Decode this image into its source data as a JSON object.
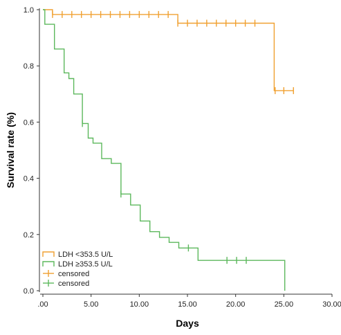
{
  "chart_data": {
    "type": "line",
    "subtype": "kaplan-meier",
    "xlabel": "Days",
    "ylabel": "Survival rate (%)",
    "xlim": [
      0,
      30
    ],
    "ylim": [
      0,
      1
    ],
    "x_ticks": [
      0,
      5,
      10,
      15,
      20,
      25,
      30
    ],
    "x_tick_labels": [
      ".00",
      "5.00",
      "10.00",
      "15.00",
      "20.00",
      "25.00",
      "30.00"
    ],
    "y_ticks": [
      0,
      0.2,
      0.4,
      0.6,
      0.8,
      1.0
    ],
    "y_tick_labels": [
      "0.0",
      "0.2",
      "0.4",
      "0.6",
      "0.8",
      "1.0"
    ],
    "grid": false,
    "legend_position": "bottom-left",
    "series": [
      {
        "name": "LDH <353.5 U/L",
        "color": "#F0A030",
        "steps": [
          [
            0,
            1.0
          ],
          [
            1,
            0.983
          ],
          [
            14,
            0.952
          ],
          [
            24,
            0.712
          ],
          [
            26,
            0.712
          ]
        ],
        "censored_x": [
          1,
          2,
          3,
          4,
          5,
          6,
          7,
          8,
          9,
          10,
          11,
          12,
          13,
          14,
          15,
          16,
          17,
          18,
          19,
          20,
          21,
          22,
          24.1,
          25,
          26
        ]
      },
      {
        "name": "LDH ≥353.5 U/L",
        "color": "#5CB85C",
        "steps": [
          [
            0,
            1.0
          ],
          [
            0.2,
            0.948
          ],
          [
            1.2,
            0.86
          ],
          [
            2.2,
            0.775
          ],
          [
            2.7,
            0.755
          ],
          [
            3.2,
            0.7
          ],
          [
            4.1,
            0.595
          ],
          [
            4.7,
            0.543
          ],
          [
            5.2,
            0.525
          ],
          [
            6.1,
            0.47
          ],
          [
            7.1,
            0.453
          ],
          [
            8.1,
            0.344
          ],
          [
            9.1,
            0.305
          ],
          [
            10.1,
            0.248
          ],
          [
            11.1,
            0.21
          ],
          [
            12.1,
            0.19
          ],
          [
            13.1,
            0.172
          ],
          [
            14.1,
            0.152
          ],
          [
            16.1,
            0.108
          ],
          [
            25.1,
            0.0
          ]
        ],
        "censored_x": [
          4.1,
          8.1,
          15.1,
          19.1,
          20.1,
          21.1
        ]
      }
    ],
    "legend": [
      {
        "label": "LDH <353.5 U/L",
        "kind": "line",
        "color": "#F0A030"
      },
      {
        "label": "LDH ≥353.5 U/L",
        "kind": "line",
        "color": "#5CB85C"
      },
      {
        "label": "censored",
        "kind": "censor",
        "color": "#F0A030"
      },
      {
        "label": "censored",
        "kind": "censor",
        "color": "#5CB85C"
      }
    ]
  }
}
